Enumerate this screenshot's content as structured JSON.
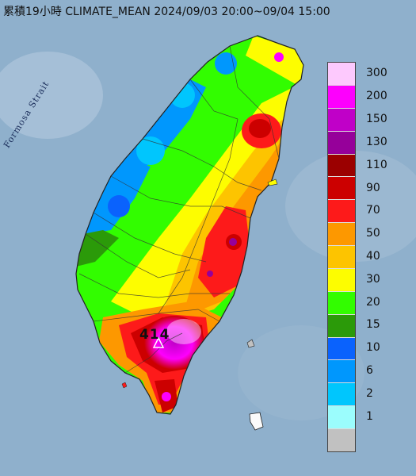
{
  "title": "累積19小時 CLIMATE_MEAN 2024/09/03 20:00~09/04 15:00",
  "strait_label": "Formosa Strait",
  "peak_label": "414",
  "colors": {
    "sea": "#7f9fbf",
    "land_outline": "#333333"
  },
  "legend": [
    {
      "label": "300",
      "color": "#fdc9fd"
    },
    {
      "label": "200",
      "color": "#fd00fd"
    },
    {
      "label": "150",
      "color": "#c000c8"
    },
    {
      "label": "130",
      "color": "#96009a"
    },
    {
      "label": "110",
      "color": "#9b0000"
    },
    {
      "label": "90",
      "color": "#cc0000"
    },
    {
      "label": "70",
      "color": "#fd1a1a"
    },
    {
      "label": "50",
      "color": "#fd9800"
    },
    {
      "label": "40",
      "color": "#fdc400"
    },
    {
      "label": "30",
      "color": "#fdfd00"
    },
    {
      "label": "20",
      "color": "#32fd00"
    },
    {
      "label": "15",
      "color": "#2b9a09"
    },
    {
      "label": "10",
      "color": "#0a62fd"
    },
    {
      "label": "6",
      "color": "#0097fd"
    },
    {
      "label": "2",
      "color": "#00c6fd"
    },
    {
      "label": "1",
      "color": "#9bfdfd"
    },
    {
      "label": "",
      "color": "#c1c1c1"
    }
  ]
}
